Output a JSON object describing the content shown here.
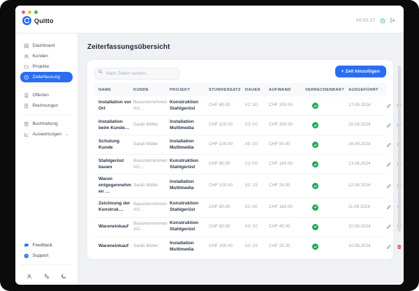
{
  "window": {
    "controls": [
      "close",
      "minimize",
      "maximize"
    ],
    "brand": "Quitto",
    "header": {
      "timer_value": "00:02:27"
    }
  },
  "sidebar": {
    "groups": [
      {
        "items": [
          {
            "label": "Dashboard",
            "icon": "dashboard-icon",
            "active": false
          },
          {
            "label": "Kunden",
            "icon": "customers-icon",
            "active": false
          },
          {
            "label": "Projekte",
            "icon": "projects-icon",
            "active": false
          },
          {
            "label": "Zeiterfassung",
            "icon": "time-tracking-icon",
            "active": true
          }
        ]
      },
      {
        "items": [
          {
            "label": "Offerten",
            "icon": "offers-icon",
            "active": false
          },
          {
            "label": "Rechnungen",
            "icon": "invoices-icon",
            "active": false
          }
        ]
      },
      {
        "items": [
          {
            "label": "Buchhaltung",
            "icon": "accounting-icon",
            "active": false
          },
          {
            "label": "Auswertungen",
            "icon": "reports-icon",
            "active": false,
            "chevron": true
          }
        ]
      }
    ],
    "footer_links": [
      {
        "label": "Feedback",
        "icon": "feedback-icon"
      },
      {
        "label": "Support",
        "icon": "support-icon"
      }
    ],
    "footer_icons": [
      "profile-icon",
      "language-icon",
      "dark-mode-icon"
    ]
  },
  "main": {
    "page_title": "Zeiterfassungsübersicht",
    "search": {
      "placeholder": "Nach Zeiten suchen..."
    },
    "add_button_label": "+ Zeit hinzufügen",
    "table": {
      "columns": [
        "NAME",
        "KUNDE",
        "PROJEKT",
        "STUNDENSATZ",
        "DAUER",
        "AUFWAND",
        "VERRECHENBAR?",
        "AUSGEFÜHRT"
      ],
      "sorted_column": "AUSGEFÜHRT",
      "row_actions": [
        "edit",
        "delete"
      ],
      "rows": [
        {
          "name": "Installation vor Ort",
          "kunde": "Bauunternehmen AG…",
          "projekt": "Konstruktion Stahlgerüst",
          "stundensatz": "CHF 80.00",
          "dauer": "02:30",
          "aufwand": "CHF 200.00",
          "verrechenbar": true,
          "ausgefuehrt": "17.09.2024"
        },
        {
          "name": "Installation beim Kunde…",
          "kunde": "Sarah Müller",
          "projekt": "Installation Multimedia",
          "stundensatz": "CHF 100.00",
          "dauer": "03:00",
          "aufwand": "CHF 300.00",
          "verrechenbar": true,
          "ausgefuehrt": "16.09.2024"
        },
        {
          "name": "Schulung Kunde",
          "kunde": "Sarah Müller",
          "projekt": "Installation Multimedia",
          "stundensatz": "CHF 100.00",
          "dauer": "00:30",
          "aufwand": "CHF 50.00",
          "verrechenbar": true,
          "ausgefuehrt": "16.09.2024"
        },
        {
          "name": "Stahlgerüst bauen",
          "kunde": "Bauunternehmen AG…",
          "projekt": "Konstruktion Stahlgerüst",
          "stundensatz": "CHF 80.00",
          "dauer": "02:00",
          "aufwand": "CHF 160.00",
          "verrechenbar": true,
          "ausgefuehrt": "13.09.2024"
        },
        {
          "name": "Waren entgegennehmen …",
          "kunde": "Sarah Müller",
          "projekt": "Installation Multimedia",
          "stundensatz": "CHF 100.00",
          "dauer": "00:15",
          "aufwand": "CHF 25.00",
          "verrechenbar": true,
          "ausgefuehrt": "12.08.2024"
        },
        {
          "name": "Zeichnung der Konstruk…",
          "kunde": "Bauunternehmen AG…",
          "projekt": "Konstruktion Stahlgerüst",
          "stundensatz": "CHF 80.00",
          "dauer": "02:00",
          "aufwand": "CHF 160.00",
          "verrechenbar": true,
          "ausgefuehrt": "11.08.2024"
        },
        {
          "name": "Wareneinkauf",
          "kunde": "Bauunternehmen AG…",
          "projekt": "Konstruktion Stahlgerüst",
          "stundensatz": "CHF 80.00",
          "dauer": "00:30",
          "aufwand": "CHF 40.00",
          "verrechenbar": true,
          "ausgefuehrt": "10.08.2024"
        },
        {
          "name": "Wareneinkauf",
          "kunde": "Sarah Müller",
          "projekt": "Installation Multimedia",
          "stundensatz": "CHF 100.00",
          "dauer": "00:15",
          "aufwand": "CHF 25.00",
          "verrechenbar": true,
          "ausgefuehrt": "10.08.2024"
        }
      ]
    }
  },
  "colors": {
    "accent": "#2a6df4",
    "success": "#1fa956",
    "danger": "#d6413c",
    "timer_green": "#34b96f"
  }
}
